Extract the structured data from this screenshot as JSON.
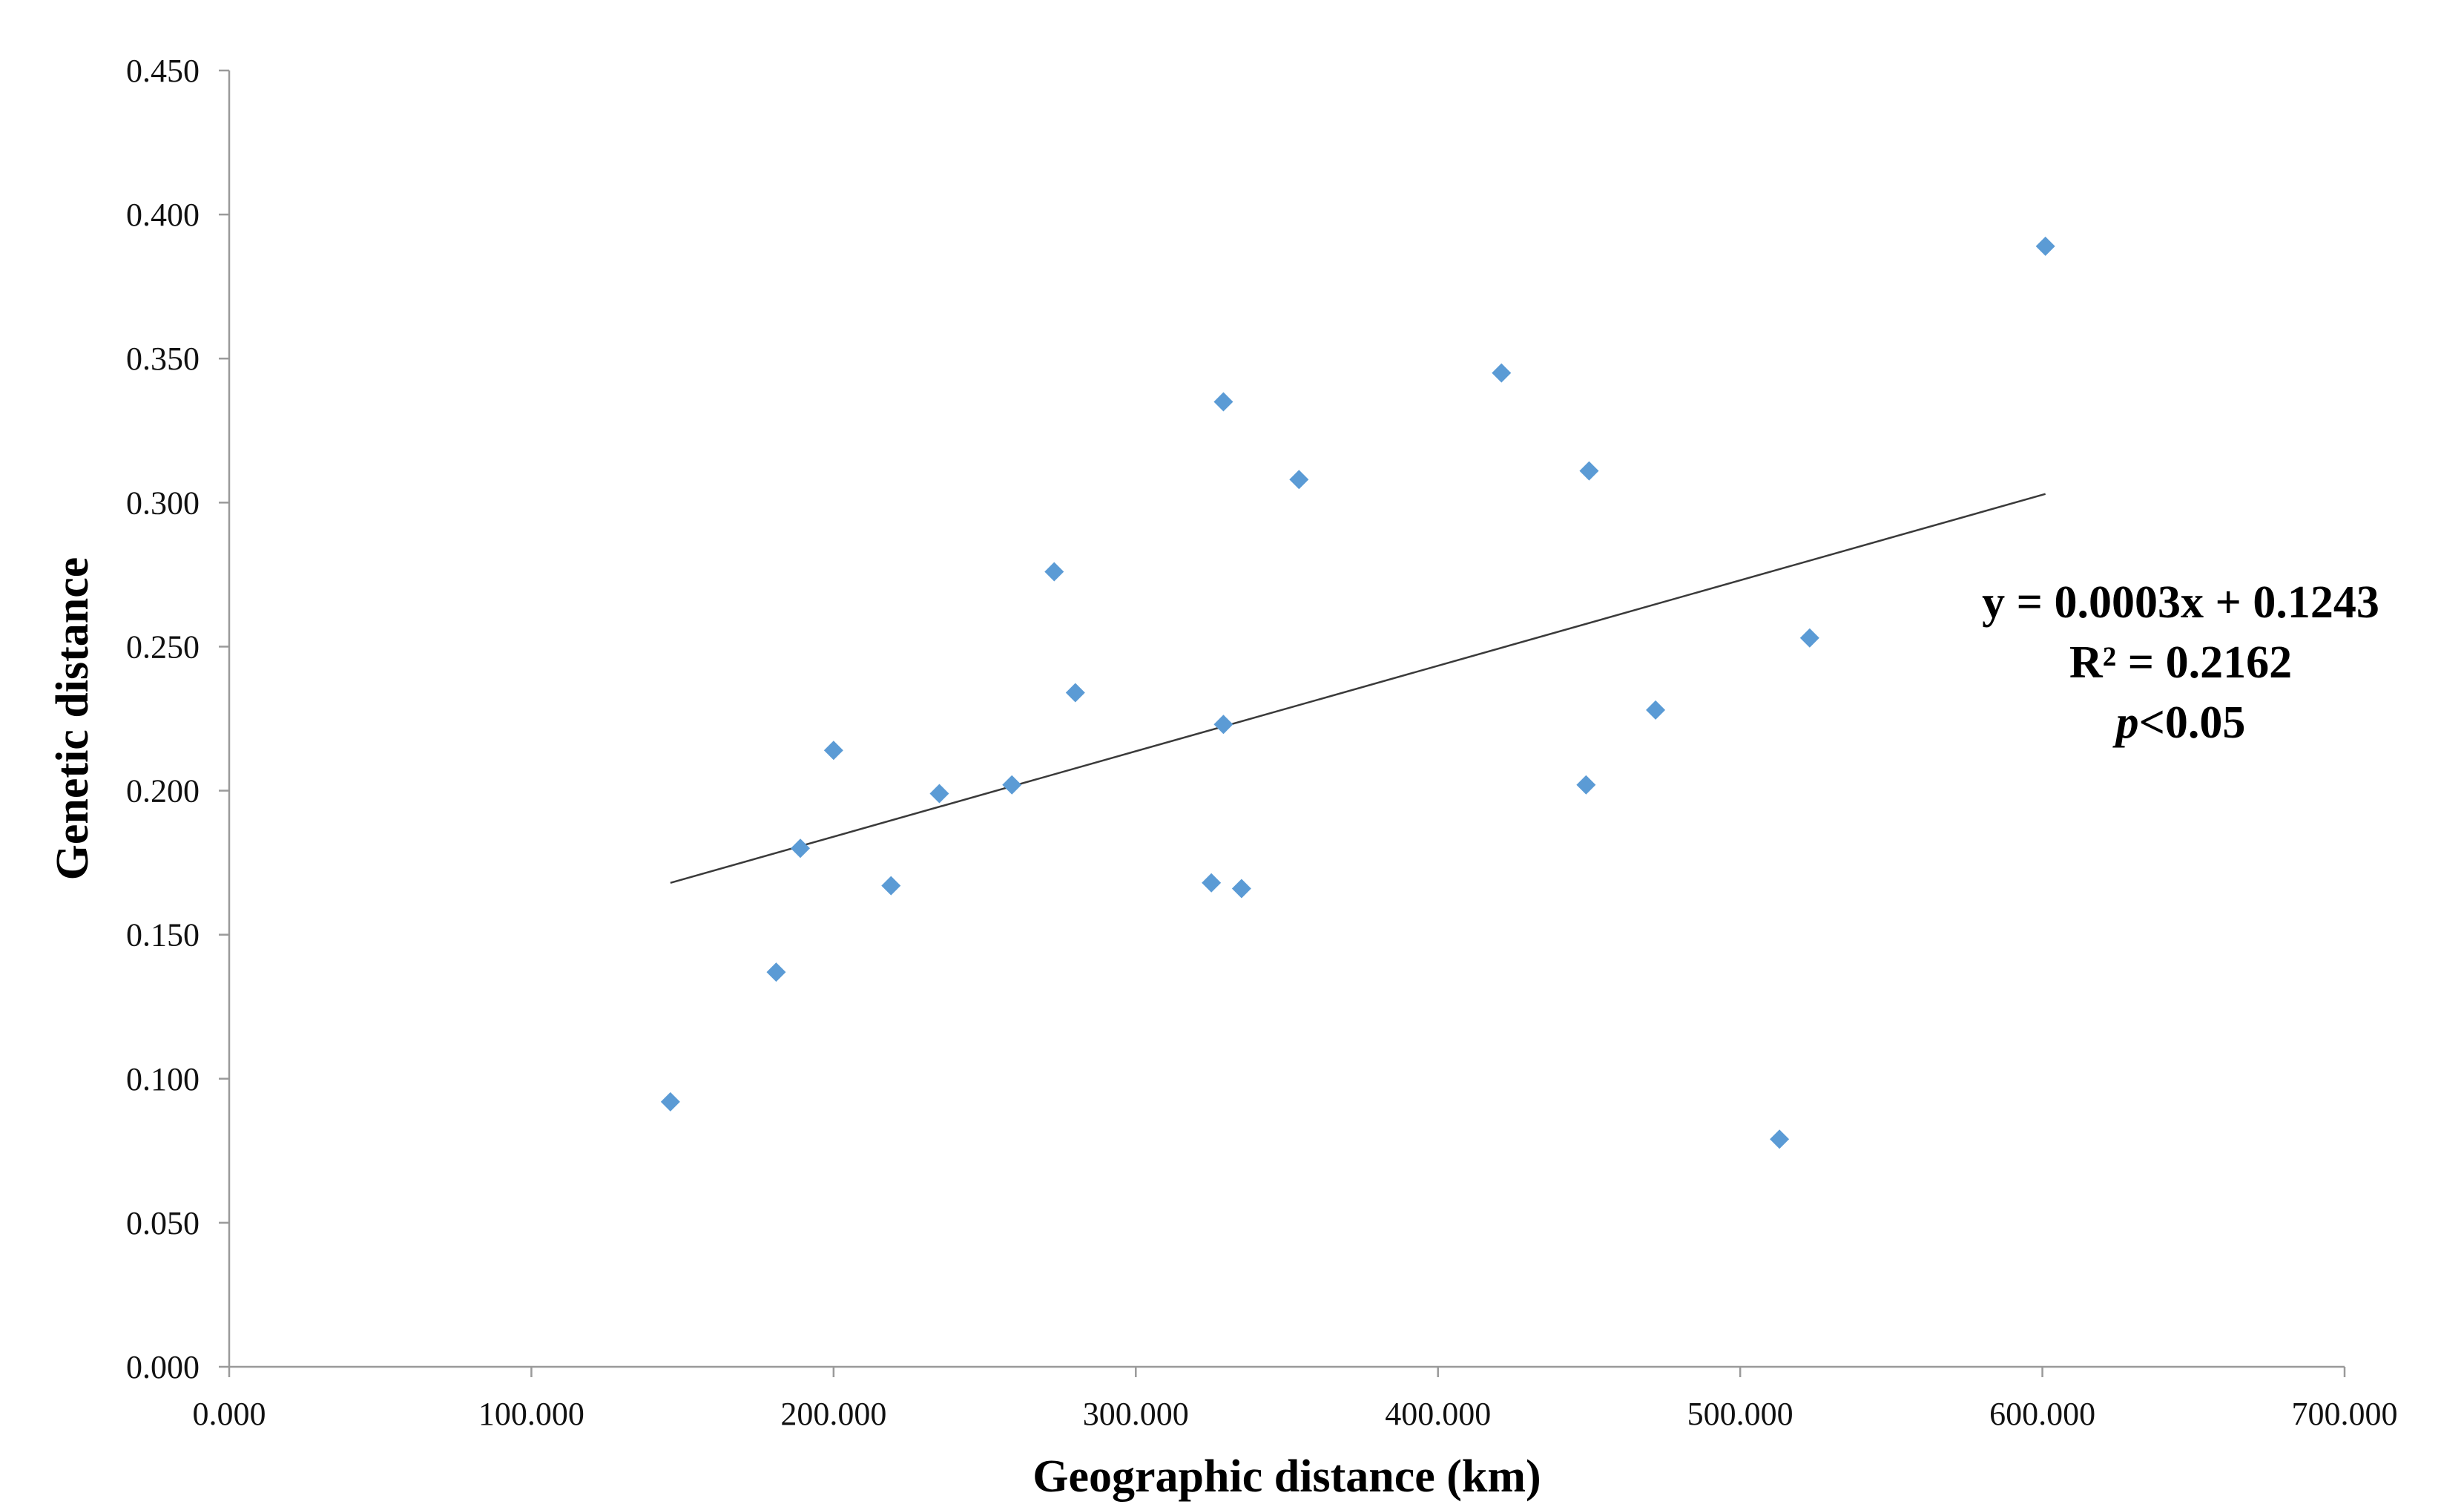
{
  "chart_data": {
    "type": "scatter",
    "xlabel": "Geographic distance (km)",
    "ylabel": "Genetic distance",
    "xlim": [
      0,
      700
    ],
    "ylim": [
      0,
      0.45
    ],
    "x_ticks": [
      0,
      100,
      200,
      300,
      400,
      500,
      600,
      700
    ],
    "y_ticks": [
      0,
      0.05,
      0.1,
      0.15,
      0.2,
      0.25,
      0.3,
      0.35,
      0.4,
      0.45
    ],
    "x_tick_labels": [
      "0.000",
      "100.000",
      "200.000",
      "300.000",
      "400.000",
      "500.000",
      "600.000",
      "700.000"
    ],
    "y_tick_labels": [
      "0.000",
      "0.050",
      "0.100",
      "0.150",
      "0.200",
      "0.250",
      "0.300",
      "0.350",
      "0.400",
      "0.450"
    ],
    "grid": false,
    "marker_color": "#5b9bd5",
    "trendline_color": "#3a3a3a",
    "series": [
      {
        "points": [
          {
            "x": 146,
            "y": 0.092
          },
          {
            "x": 181,
            "y": 0.137
          },
          {
            "x": 189,
            "y": 0.18
          },
          {
            "x": 200,
            "y": 0.214
          },
          {
            "x": 219,
            "y": 0.167
          },
          {
            "x": 235,
            "y": 0.199
          },
          {
            "x": 259,
            "y": 0.202
          },
          {
            "x": 273,
            "y": 0.276
          },
          {
            "x": 280,
            "y": 0.234
          },
          {
            "x": 325,
            "y": 0.168
          },
          {
            "x": 329,
            "y": 0.223
          },
          {
            "x": 329,
            "y": 0.335
          },
          {
            "x": 335,
            "y": 0.166
          },
          {
            "x": 354,
            "y": 0.308
          },
          {
            "x": 421,
            "y": 0.345
          },
          {
            "x": 449,
            "y": 0.202
          },
          {
            "x": 450,
            "y": 0.311
          },
          {
            "x": 472,
            "y": 0.228
          },
          {
            "x": 513,
            "y": 0.079
          },
          {
            "x": 523,
            "y": 0.253
          },
          {
            "x": 601,
            "y": 0.389
          }
        ]
      }
    ],
    "trendline": {
      "x_start": 146,
      "y_start": 0.168,
      "x_end": 601,
      "y_end": 0.303
    },
    "annotation": {
      "equation": "y = 0.0003x + 0.1243",
      "r_squared": "R² = 0.2162",
      "p_italic": "p",
      "p_rest": "<0.05"
    }
  }
}
